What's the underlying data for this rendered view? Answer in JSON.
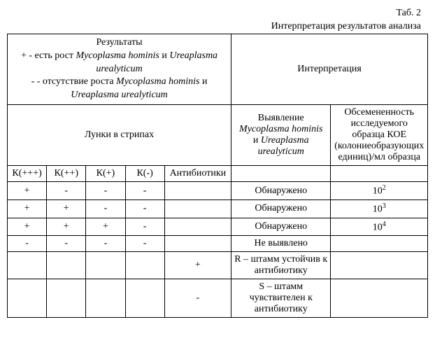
{
  "caption": {
    "table_no": "Таб. 2",
    "title": "Интерпретация результатов анализа"
  },
  "header": {
    "results_title": "Результаты",
    "results_plus_prefix": "+ - есть рост ",
    "results_plus_sp1": "Mycoplasma hominis",
    "results_and": " и ",
    "results_plus_sp2": "Ureaplasma urealyticum",
    "results_minus_prefix": "- - отсутствие роста ",
    "results_minus_sp1": "Mycoplasma hominis",
    "results_minus_sp2": "Ureaplasma urealyticum",
    "interpretation": "Интерпретация",
    "wells": "Лунки в стрипах",
    "detection_l1": "Выявление",
    "detection_sp1": "Mycoplasma hominis",
    "detection_and": " и ",
    "detection_sp2": "Ureaplasma urealyticum",
    "koe": "Обсемененность исследуемого образца КОЕ (колониеобразующих единиц)/мл образца",
    "col_k3": "К(+++)",
    "col_k2": "К(++)",
    "col_k1": "К(+)",
    "col_k0": "К(-)",
    "col_ab": "Антибиотики"
  },
  "rows": [
    {
      "k3": "+",
      "k2": "-",
      "k1": "-",
      "k0": "-",
      "ab": "",
      "det": "Обнаружено",
      "koe_base": "10",
      "koe_exp": "2"
    },
    {
      "k3": "+",
      "k2": "+",
      "k1": "-",
      "k0": "-",
      "ab": "",
      "det": "Обнаружено",
      "koe_base": "10",
      "koe_exp": "3"
    },
    {
      "k3": "+",
      "k2": "+",
      "k1": "+",
      "k0": "-",
      "ab": "",
      "det": "Обнаружено",
      "koe_base": "10",
      "koe_exp": "4"
    },
    {
      "k3": "-",
      "k2": "-",
      "k1": "-",
      "k0": "-",
      "ab": "",
      "det": "Не выявлено",
      "koe_base": "",
      "koe_exp": ""
    },
    {
      "k3": "",
      "k2": "",
      "k1": "",
      "k0": "",
      "ab": "+",
      "det": "R – штамм устойчив к антибиотику",
      "koe_base": "",
      "koe_exp": ""
    },
    {
      "k3": "",
      "k2": "",
      "k1": "",
      "k0": "",
      "ab": "-",
      "det": "S – штамм чувствителен к антибиотику",
      "koe_base": "",
      "koe_exp": ""
    }
  ]
}
